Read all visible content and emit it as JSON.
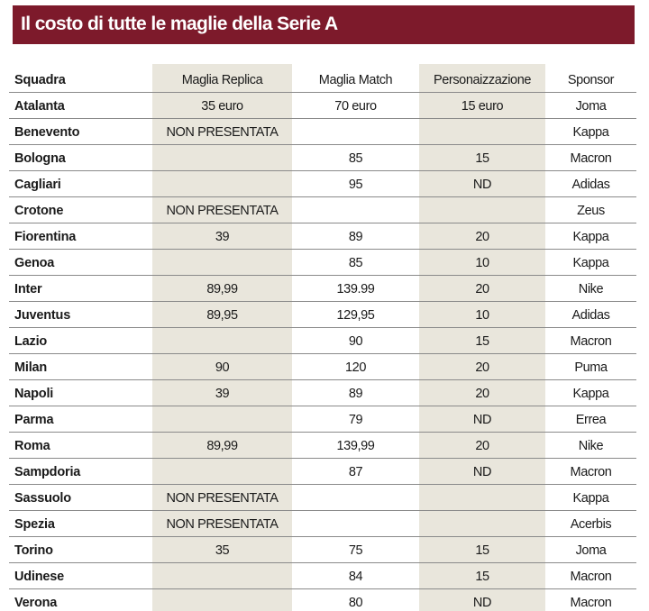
{
  "title": "Il costo di tutte le maglie della Serie A",
  "headers": {
    "team": "Squadra",
    "replica": "Maglia Replica",
    "match": "Maglia Match",
    "personalization": "Personaizzazione",
    "sponsor": "Sponsor"
  },
  "rows": [
    {
      "team": "Atalanta",
      "replica": "35 euro",
      "match": "70 euro",
      "personalization": "15 euro",
      "sponsor": "Joma"
    },
    {
      "team": "Benevento",
      "replica": "NON PRESENTATA",
      "match": "",
      "personalization": "",
      "sponsor": "Kappa"
    },
    {
      "team": "Bologna",
      "replica": "",
      "match": "85",
      "personalization": "15",
      "sponsor": "Macron"
    },
    {
      "team": "Cagliari",
      "replica": "",
      "match": "95",
      "personalization": "ND",
      "sponsor": "Adidas"
    },
    {
      "team": "Crotone",
      "replica": "NON PRESENTATA",
      "match": "",
      "personalization": "",
      "sponsor": "Zeus"
    },
    {
      "team": "Fiorentina",
      "replica": "39",
      "match": "89",
      "personalization": "20",
      "sponsor": "Kappa"
    },
    {
      "team": "Genoa",
      "replica": "",
      "match": "85",
      "personalization": "10",
      "sponsor": "Kappa"
    },
    {
      "team": "Inter",
      "replica": "89,99",
      "match": "139.99",
      "personalization": "20",
      "sponsor": "Nike"
    },
    {
      "team": "Juventus",
      "replica": "89,95",
      "match": "129,95",
      "personalization": "10",
      "sponsor": "Adidas"
    },
    {
      "team": "Lazio",
      "replica": "",
      "match": "90",
      "personalization": "15",
      "sponsor": "Macron"
    },
    {
      "team": "Milan",
      "replica": "90",
      "match": "120",
      "personalization": "20",
      "sponsor": "Puma"
    },
    {
      "team": "Napoli",
      "replica": "39",
      "match": "89",
      "personalization": "20",
      "sponsor": "Kappa"
    },
    {
      "team": "Parma",
      "replica": "",
      "match": "79",
      "personalization": "ND",
      "sponsor": "Errea"
    },
    {
      "team": "Roma",
      "replica": "89,99",
      "match": "139,99",
      "personalization": "20",
      "sponsor": "Nike"
    },
    {
      "team": "Sampdoria",
      "replica": "",
      "match": "87",
      "personalization": "ND",
      "sponsor": "Macron"
    },
    {
      "team": "Sassuolo",
      "replica": "NON PRESENTATA",
      "match": "",
      "personalization": "",
      "sponsor": "Kappa"
    },
    {
      "team": "Spezia",
      "replica": "NON PRESENTATA",
      "match": "",
      "personalization": "",
      "sponsor": "Acerbis"
    },
    {
      "team": "Torino",
      "replica": "35",
      "match": "75",
      "personalization": "15",
      "sponsor": "Joma"
    },
    {
      "team": "Udinese",
      "replica": "",
      "match": "84",
      "personalization": "15",
      "sponsor": "Macron"
    },
    {
      "team": "Verona",
      "replica": "",
      "match": "80",
      "personalization": "ND",
      "sponsor": "Macron"
    }
  ]
}
